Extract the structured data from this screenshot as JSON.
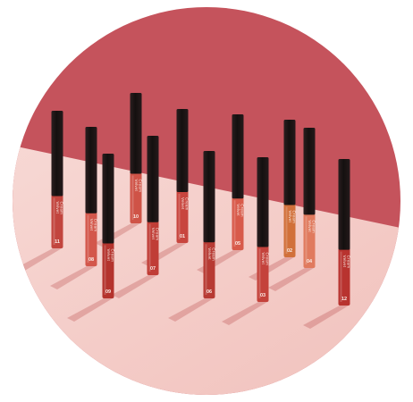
{
  "image": {
    "subject": "lip-gloss-tubes-product-photo",
    "colors": {
      "background": "#ffffff",
      "wall": "#c5535c",
      "floor": "#f4ccc8",
      "cap": "#1b1314"
    }
  },
  "tubes": [
    {
      "number": "11",
      "label_line1": "Velvet",
      "label_line2": "Cream",
      "color": "#c2453e"
    },
    {
      "number": "08",
      "label_line1": "Velvet",
      "label_line2": "Cream",
      "color": "#d3574b"
    },
    {
      "number": "09",
      "label_line1": "Velvet",
      "label_line2": "Cream",
      "color": "#b4332d"
    },
    {
      "number": "10",
      "label_line1": "Velvet",
      "label_line2": "Cream",
      "color": "#cf5347"
    },
    {
      "number": "07",
      "label_line1": "Velvet",
      "label_line2": "Cream",
      "color": "#c03d36"
    },
    {
      "number": "01",
      "label_line1": "Velvet",
      "label_line2": "Cream",
      "color": "#c8453e"
    },
    {
      "number": "06",
      "label_line1": "Velvet",
      "label_line2": "Cream",
      "color": "#b73a33"
    },
    {
      "number": "05",
      "label_line1": "Velvet",
      "label_line2": "Cream",
      "color": "#d85a4a"
    },
    {
      "number": "03",
      "label_line1": "Velvet",
      "label_line2": "Cream",
      "color": "#c4423b"
    },
    {
      "number": "02",
      "label_line1": "Velvet",
      "label_line2": "Cream",
      "color": "#d1703a"
    },
    {
      "number": "04",
      "label_line1": "Velvet",
      "label_line2": "Cream",
      "color": "#e07a5e"
    },
    {
      "number": "12",
      "label_line1": "Velvet",
      "label_line2": "Cream",
      "color": "#b8332f"
    }
  ]
}
